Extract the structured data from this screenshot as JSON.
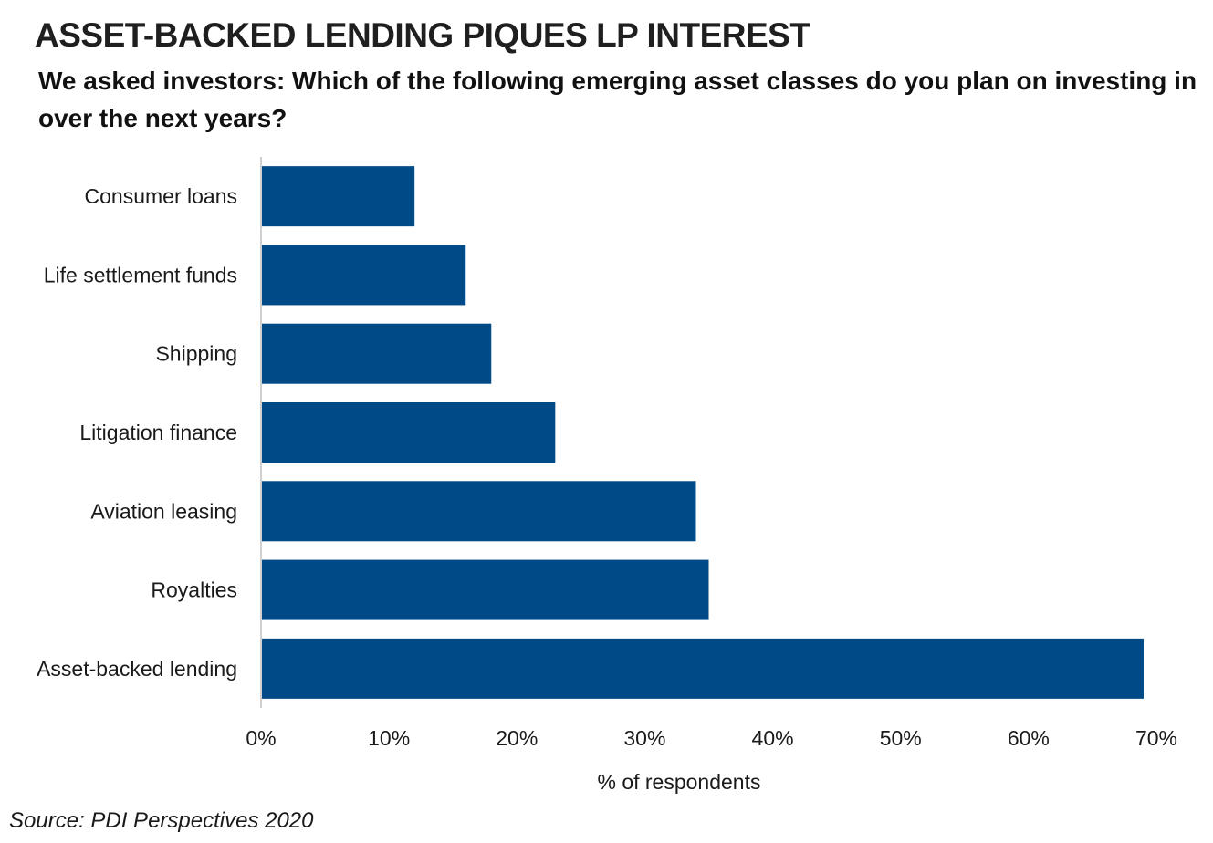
{
  "header": {
    "title": "ASSET-BACKED LENDING PIQUES LP INTEREST",
    "subtitle": "We asked investors: Which of the following emerging asset classes do you plan on investing in over the next years?"
  },
  "footer": {
    "source": "Source: PDI Perspectives 2020"
  },
  "chart_data": {
    "type": "bar",
    "orientation": "horizontal",
    "title": "ASSET-BACKED LENDING PIQUES LP INTEREST",
    "subtitle": "We asked investors: Which of the following emerging asset classes do you plan on investing in over the next years?",
    "categories": [
      "Consumer loans",
      "Life settlement funds",
      "Shipping",
      "Litigation finance",
      "Aviation leasing",
      "Royalties",
      "Asset-backed lending"
    ],
    "values": [
      12,
      16,
      18,
      23,
      34,
      35,
      69
    ],
    "xlabel": "% of respondents",
    "ylabel": "",
    "xlim": [
      0,
      70
    ],
    "xticks": [
      0,
      10,
      20,
      30,
      40,
      50,
      60,
      70
    ],
    "xtick_labels": [
      "0%",
      "10%",
      "20%",
      "30%",
      "40%",
      "50%",
      "60%",
      "70%"
    ],
    "bar_color": "#004b87",
    "axis_color": "#d0d0d0",
    "grid": false,
    "legend": "none"
  }
}
